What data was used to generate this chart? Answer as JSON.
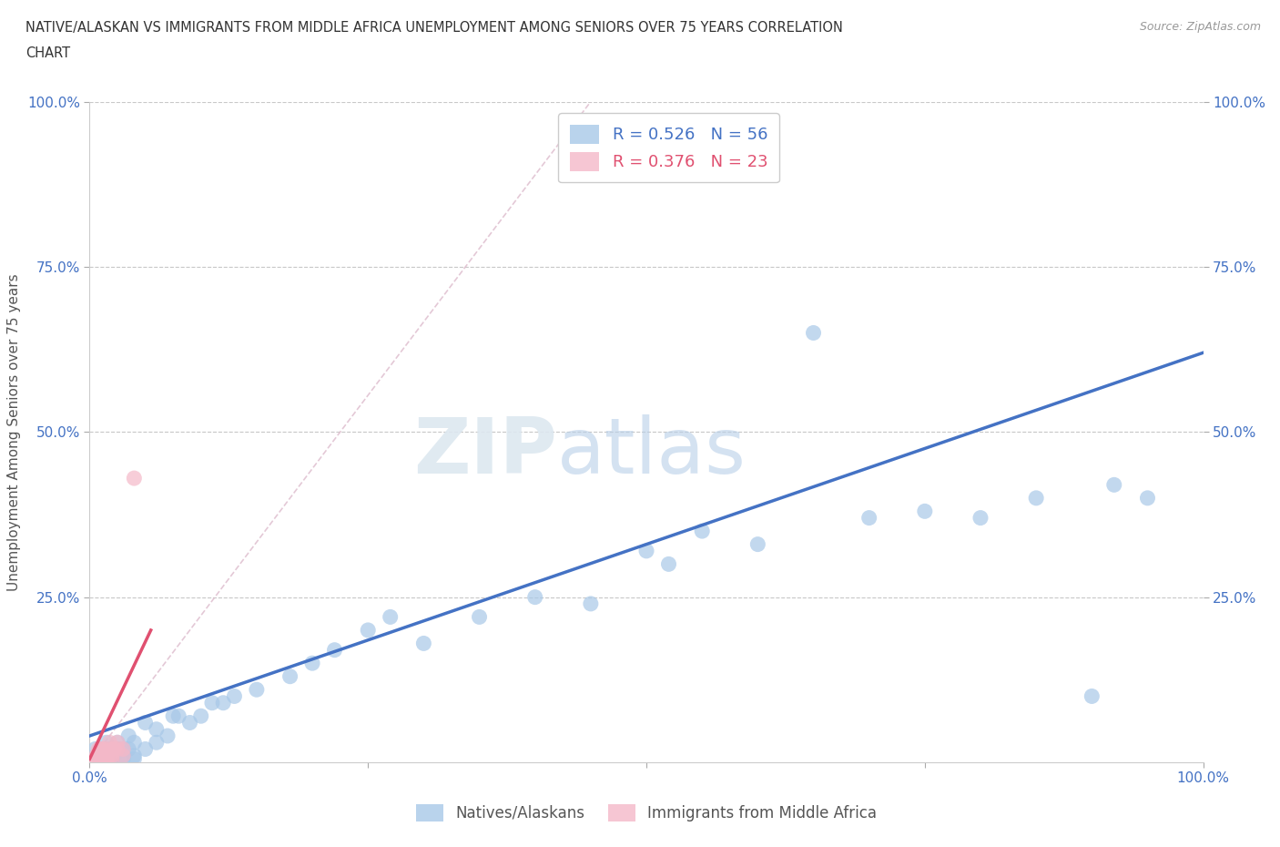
{
  "title_line1": "NATIVE/ALASKAN VS IMMIGRANTS FROM MIDDLE AFRICA UNEMPLOYMENT AMONG SENIORS OVER 75 YEARS CORRELATION",
  "title_line2": "CHART",
  "source": "Source: ZipAtlas.com",
  "ylabel": "Unemployment Among Seniors over 75 years",
  "xlim": [
    0.0,
    1.0
  ],
  "ylim": [
    0.0,
    1.0
  ],
  "xticks": [
    0.0,
    0.25,
    0.5,
    0.75,
    1.0
  ],
  "xtick_labels": [
    "0.0%",
    "",
    "",
    "",
    "100.0%"
  ],
  "yticks": [
    0.25,
    0.5,
    0.75,
    1.0
  ],
  "ytick_labels_left": [
    "25.0%",
    "50.0%",
    "75.0%",
    "100.0%"
  ],
  "ytick_labels_right": [
    "25.0%",
    "50.0%",
    "75.0%",
    "100.0%"
  ],
  "blue_color": "#a8c8e8",
  "pink_color": "#f4b8c8",
  "blue_line_color": "#4472c4",
  "pink_line_color": "#e05070",
  "diagonal_color": "#cccccc",
  "watermark_zip": "ZIP",
  "watermark_atlas": "atlas",
  "legend_r1": "R = 0.526",
  "legend_n1": "N = 56",
  "legend_r2": "R = 0.376",
  "legend_n2": "N = 23",
  "blue_scatter_x": [
    0.005,
    0.008,
    0.01,
    0.01,
    0.012,
    0.015,
    0.015,
    0.015,
    0.018,
    0.02,
    0.02,
    0.022,
    0.025,
    0.025,
    0.03,
    0.03,
    0.03,
    0.035,
    0.035,
    0.04,
    0.04,
    0.04,
    0.05,
    0.05,
    0.06,
    0.06,
    0.07,
    0.075,
    0.08,
    0.09,
    0.1,
    0.11,
    0.12,
    0.13,
    0.15,
    0.18,
    0.2,
    0.22,
    0.25,
    0.27,
    0.3,
    0.35,
    0.4,
    0.45,
    0.5,
    0.52,
    0.55,
    0.6,
    0.65,
    0.7,
    0.75,
    0.8,
    0.85,
    0.9,
    0.92,
    0.95
  ],
  "blue_scatter_y": [
    0.02,
    0.01,
    0.005,
    0.02,
    0.01,
    0.005,
    0.02,
    0.03,
    0.01,
    0.005,
    0.02,
    0.01,
    0.02,
    0.03,
    0.005,
    0.01,
    0.02,
    0.02,
    0.04,
    0.005,
    0.01,
    0.03,
    0.02,
    0.06,
    0.03,
    0.05,
    0.04,
    0.07,
    0.07,
    0.06,
    0.07,
    0.09,
    0.09,
    0.1,
    0.11,
    0.13,
    0.15,
    0.17,
    0.2,
    0.22,
    0.18,
    0.22,
    0.25,
    0.24,
    0.32,
    0.3,
    0.35,
    0.33,
    0.65,
    0.37,
    0.38,
    0.37,
    0.4,
    0.1,
    0.42,
    0.4
  ],
  "pink_scatter_x": [
    0.005,
    0.006,
    0.008,
    0.008,
    0.01,
    0.01,
    0.01,
    0.012,
    0.012,
    0.015,
    0.015,
    0.015,
    0.018,
    0.018,
    0.02,
    0.02,
    0.02,
    0.022,
    0.025,
    0.025,
    0.03,
    0.03,
    0.04
  ],
  "pink_scatter_y": [
    0.005,
    0.01,
    0.005,
    0.02,
    0.005,
    0.01,
    0.02,
    0.005,
    0.02,
    0.005,
    0.01,
    0.02,
    0.01,
    0.03,
    0.005,
    0.01,
    0.02,
    0.02,
    0.02,
    0.03,
    0.01,
    0.02,
    0.43
  ],
  "blue_line_x0": 0.0,
  "blue_line_y0": 0.04,
  "blue_line_x1": 1.0,
  "blue_line_y1": 0.62,
  "pink_line_x0": 0.0,
  "pink_line_y0": 0.005,
  "pink_line_x1": 0.055,
  "pink_line_y1": 0.2,
  "background_color": "#ffffff",
  "grid_color": "#c8c8c8",
  "tick_color": "#4472c4"
}
